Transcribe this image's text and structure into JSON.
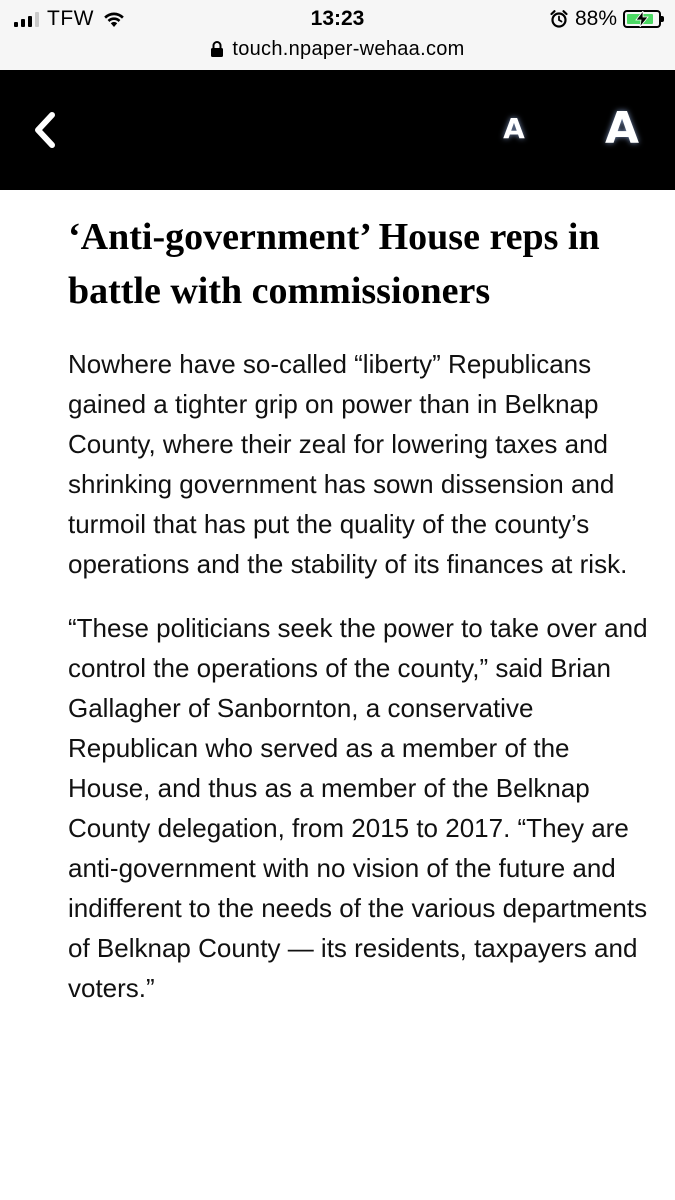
{
  "status_bar": {
    "carrier": "TFW",
    "time": "13:23",
    "battery_percent": "88%",
    "battery_color": "#4cd964",
    "url": "touch.npaper-wehaa.com",
    "icons": [
      "signal-icon",
      "wifi-icon",
      "alarm-icon",
      "battery-charging-icon",
      "lock-icon"
    ]
  },
  "toolbar": {
    "back_icon": "chevron-left-icon",
    "font_small_label": "A",
    "font_large_label": "A",
    "background": "#000000"
  },
  "article": {
    "headline": "‘Anti-government’ House reps in battle with commissioners",
    "paragraphs": [
      "Nowhere have so-called “liberty” Republicans gained a tighter grip on power than in Belknap County, where their zeal for lowering taxes and shrinking government has sown dissension and turmoil that has put the quality of the county’s operations and the stability of its finances at risk.",
      "“These politicians seek the power to take over and control the operations of the county,” said Brian Gallagher of Sanbornton, a conservative Republican who served as a member of the House, and thus as a member of the Belknap County delegation, from 2015 to 2017. “They are anti-government with no vision of the future and indifferent to the needs of the various departments of Belknap County — its residents, taxpayers and voters.”"
    ]
  }
}
